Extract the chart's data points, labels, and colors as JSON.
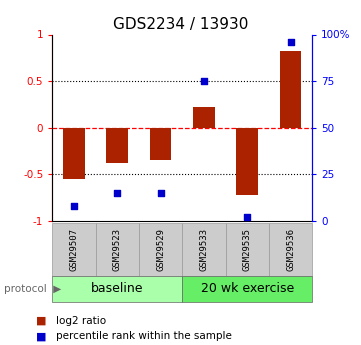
{
  "title": "GDS2234 / 13930",
  "samples": [
    "GSM29507",
    "GSM29523",
    "GSM29529",
    "GSM29533",
    "GSM29535",
    "GSM29536"
  ],
  "log2_ratio": [
    -0.55,
    -0.38,
    -0.35,
    0.22,
    -0.72,
    0.82
  ],
  "percentile_rank": [
    8,
    15,
    15,
    75,
    2,
    96
  ],
  "groups": [
    {
      "label": "baseline",
      "color": "#aaffaa",
      "start": 0,
      "end": 3
    },
    {
      "label": "20 wk exercise",
      "color": "#66ee66",
      "start": 3,
      "end": 6
    }
  ],
  "bar_color": "#aa2200",
  "scatter_color": "#0000cc",
  "ylim_left": [
    -1.0,
    1.0
  ],
  "ylim_right": [
    0,
    100
  ],
  "yticks_left": [
    -1.0,
    -0.5,
    0.0,
    0.5,
    1.0
  ],
  "yticks_right": [
    0,
    25,
    50,
    75,
    100
  ],
  "ytick_labels_left": [
    "-1",
    "-0.5",
    "0",
    "0.5",
    "1"
  ],
  "ytick_labels_right": [
    "0",
    "25",
    "50",
    "75",
    "100%"
  ],
  "hlines_dotted": [
    -0.5,
    0.5
  ],
  "hline_dashed": 0.0,
  "legend_items": [
    {
      "label": "log2 ratio",
      "color": "#aa2200"
    },
    {
      "label": "percentile rank within the sample",
      "color": "#0000cc"
    }
  ],
  "bar_width": 0.5,
  "title_fontsize": 11,
  "tick_fontsize": 7.5,
  "sample_fontsize": 6.5,
  "group_label_fontsize": 9,
  "legend_fontsize": 7.5,
  "sample_box_color": "#cccccc",
  "protocol_color": "#666666"
}
